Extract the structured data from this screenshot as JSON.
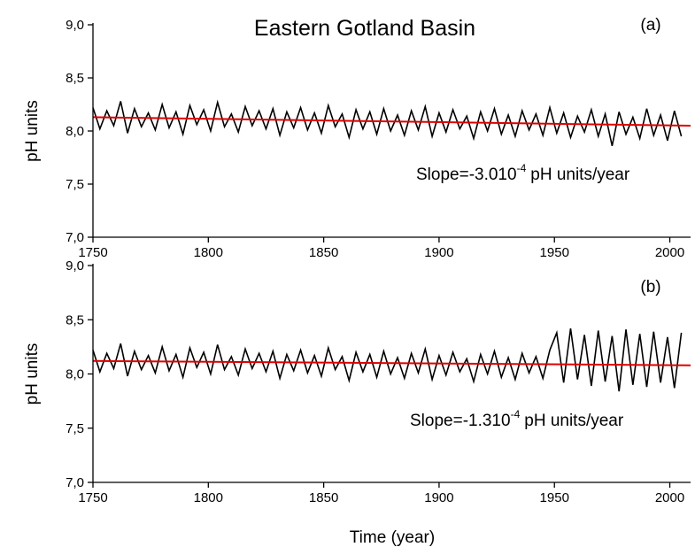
{
  "chart_data": [
    {
      "type": "line",
      "title": "Eastern Gotland Basin",
      "panel_label": "(a)",
      "ylabel": "pH units",
      "xlim": [
        1750,
        2009
      ],
      "xticks": [
        1750,
        1800,
        1850,
        1900,
        1950,
        2000
      ],
      "ylim": [
        7,
        9
      ],
      "yticks": [
        {
          "value": 7,
          "label": "7,0"
        },
        {
          "value": 7.5,
          "label": "7,5"
        },
        {
          "value": 8,
          "label": "8,0"
        },
        {
          "value": 8.5,
          "label": "8,5"
        },
        {
          "value": 9,
          "label": "9,0"
        }
      ],
      "annotation": {
        "text": "Slope=-3.010",
        "superscript": "-4",
        "suffix": "pH units/year"
      },
      "series": [
        {
          "color": "#000000",
          "x": [
            1750,
            1753,
            1756,
            1759,
            1762,
            1765,
            1768,
            1771,
            1774,
            1777,
            1780,
            1783,
            1786,
            1789,
            1792,
            1795,
            1798,
            1801,
            1804,
            1807,
            1810,
            1813,
            1816,
            1819,
            1822,
            1825,
            1828,
            1831,
            1834,
            1837,
            1840,
            1843,
            1846,
            1849,
            1852,
            1855,
            1858,
            1861,
            1864,
            1867,
            1870,
            1873,
            1876,
            1879,
            1882,
            1885,
            1888,
            1891,
            1894,
            1897,
            1900,
            1903,
            1906,
            1909,
            1912,
            1915,
            1918,
            1921,
            1924,
            1927,
            1930,
            1933,
            1936,
            1939,
            1942,
            1945,
            1948,
            1951,
            1954,
            1957,
            1960,
            1963,
            1966,
            1969,
            1972,
            1975,
            1978,
            1981,
            1984,
            1987,
            1990,
            1993,
            1996,
            1999,
            2002,
            2005
          ],
          "values": [
            8.22,
            8.02,
            8.19,
            8.05,
            8.28,
            7.98,
            8.21,
            8.04,
            8.17,
            8.01,
            8.25,
            8.03,
            8.18,
            7.97,
            8.24,
            8.06,
            8.2,
            8.0,
            8.27,
            8.04,
            8.16,
            7.99,
            8.23,
            8.05,
            8.19,
            8.02,
            8.21,
            7.96,
            8.18,
            8.03,
            8.22,
            8.01,
            8.17,
            7.98,
            8.24,
            8.04,
            8.16,
            7.94,
            8.2,
            8.02,
            8.18,
            7.97,
            8.21,
            8.0,
            8.15,
            7.96,
            8.19,
            8.01,
            8.23,
            7.95,
            8.17,
            7.99,
            8.2,
            8.02,
            8.14,
            7.93,
            8.18,
            8.0,
            8.21,
            7.97,
            8.15,
            7.95,
            8.19,
            8.01,
            8.16,
            7.96,
            8.22,
            7.98,
            8.17,
            7.94,
            8.14,
            7.99,
            8.2,
            7.95,
            8.16,
            7.86,
            8.18,
            7.97,
            8.13,
            7.93,
            8.21,
            7.96,
            8.15,
            7.91,
            8.19,
            7.95
          ]
        },
        {
          "color": "#e00000",
          "x": [
            1750,
            2009
          ],
          "values": [
            8.13,
            8.05
          ]
        }
      ]
    },
    {
      "type": "line",
      "panel_label": "(b)",
      "ylabel": "pH units",
      "xlabel": "Time (year)",
      "xlim": [
        1750,
        2009
      ],
      "xticks": [
        1750,
        1800,
        1850,
        1900,
        1950,
        2000
      ],
      "ylim": [
        7,
        9
      ],
      "yticks": [
        {
          "value": 7,
          "label": "7,0"
        },
        {
          "value": 7.5,
          "label": "7,5"
        },
        {
          "value": 8,
          "label": "8,0"
        },
        {
          "value": 8.5,
          "label": "8,5"
        },
        {
          "value": 9,
          "label": "9,0"
        }
      ],
      "annotation": {
        "text": "Slope=-1.310",
        "superscript": "-4",
        "suffix": "pH units/year"
      },
      "series": [
        {
          "color": "#000000",
          "x": [
            1750,
            1753,
            1756,
            1759,
            1762,
            1765,
            1768,
            1771,
            1774,
            1777,
            1780,
            1783,
            1786,
            1789,
            1792,
            1795,
            1798,
            1801,
            1804,
            1807,
            1810,
            1813,
            1816,
            1819,
            1822,
            1825,
            1828,
            1831,
            1834,
            1837,
            1840,
            1843,
            1846,
            1849,
            1852,
            1855,
            1858,
            1861,
            1864,
            1867,
            1870,
            1873,
            1876,
            1879,
            1882,
            1885,
            1888,
            1891,
            1894,
            1897,
            1900,
            1903,
            1906,
            1909,
            1912,
            1915,
            1918,
            1921,
            1924,
            1927,
            1930,
            1933,
            1936,
            1939,
            1942,
            1945,
            1948,
            1951,
            1954,
            1957,
            1960,
            1963,
            1966,
            1969,
            1972,
            1975,
            1978,
            1981,
            1984,
            1987,
            1990,
            1993,
            1996,
            1999,
            2002,
            2005
          ],
          "values": [
            8.22,
            8.02,
            8.19,
            8.05,
            8.28,
            7.98,
            8.21,
            8.04,
            8.17,
            8.01,
            8.25,
            8.03,
            8.18,
            7.97,
            8.24,
            8.06,
            8.2,
            8.0,
            8.27,
            8.04,
            8.16,
            7.99,
            8.23,
            8.05,
            8.19,
            8.02,
            8.21,
            7.96,
            8.18,
            8.03,
            8.22,
            8.01,
            8.17,
            7.98,
            8.24,
            8.04,
            8.16,
            7.94,
            8.2,
            8.02,
            8.18,
            7.97,
            8.21,
            8.0,
            8.15,
            7.96,
            8.19,
            8.01,
            8.23,
            7.95,
            8.17,
            7.99,
            8.2,
            8.02,
            8.14,
            7.93,
            8.18,
            8.0,
            8.21,
            7.97,
            8.15,
            7.95,
            8.19,
            8.01,
            8.16,
            7.96,
            8.22,
            8.38,
            7.92,
            8.42,
            7.95,
            8.36,
            7.89,
            8.4,
            7.93,
            8.35,
            7.84,
            8.41,
            7.9,
            8.37,
            7.88,
            8.39,
            7.92,
            8.34,
            7.87,
            8.38
          ]
        },
        {
          "color": "#e00000",
          "x": [
            1750,
            2009
          ],
          "values": [
            8.12,
            8.08
          ]
        }
      ]
    }
  ]
}
